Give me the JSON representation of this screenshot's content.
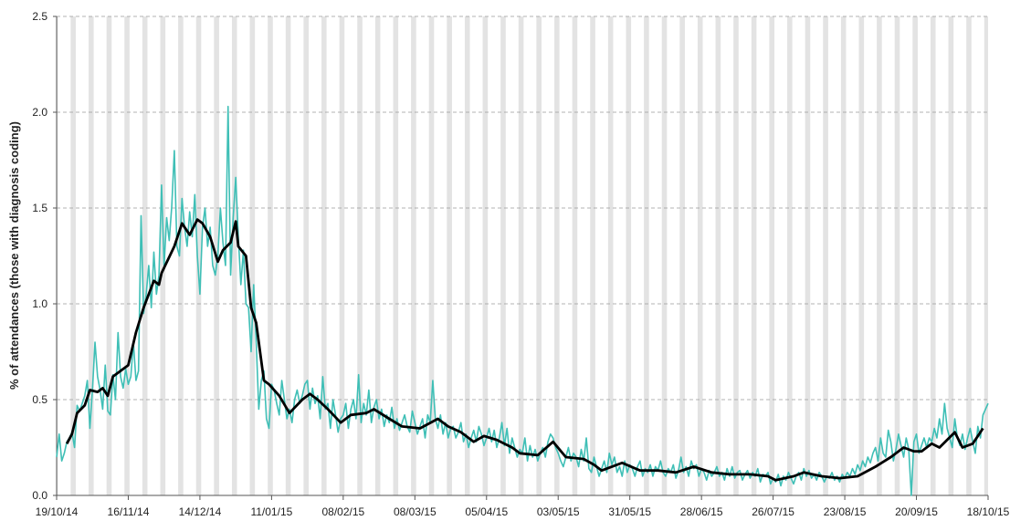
{
  "chart_data": {
    "type": "line",
    "y_label": "% of attendances (those with diagnosis coding)",
    "xlim": [
      0,
      364
    ],
    "xticks": [
      {
        "value": 0,
        "label": "19/10/14"
      },
      {
        "value": 28,
        "label": "16/11/14"
      },
      {
        "value": 56,
        "label": "14/12/14"
      },
      {
        "value": 84,
        "label": "11/01/15"
      },
      {
        "value": 112,
        "label": "08/02/15"
      },
      {
        "value": 140,
        "label": "08/03/15"
      },
      {
        "value": 168,
        "label": "05/04/15"
      },
      {
        "value": 196,
        "label": "03/05/15"
      },
      {
        "value": 224,
        "label": "31/05/15"
      },
      {
        "value": 252,
        "label": "28/06/15"
      },
      {
        "value": 280,
        "label": "26/07/15"
      },
      {
        "value": 308,
        "label": "23/08/15"
      },
      {
        "value": 336,
        "label": "20/09/15"
      },
      {
        "value": 364,
        "label": "18/10/15"
      }
    ],
    "ylim": [
      0,
      2.5
    ],
    "yticks": [
      {
        "value": 0,
        "label": "0.0"
      },
      0.5,
      {
        "value": 1,
        "label": "1.0"
      },
      1.5,
      {
        "value": 2,
        "label": "2.0"
      },
      2.5
    ],
    "grid": true,
    "x": [
      0,
      1,
      2,
      3,
      4,
      5,
      6,
      7,
      8,
      9,
      10,
      11,
      12,
      13,
      14,
      15,
      16,
      17,
      18,
      19,
      20,
      21,
      22,
      23,
      24,
      25,
      26,
      27,
      28,
      29,
      30,
      31,
      32,
      33,
      34,
      35,
      36,
      37,
      38,
      39,
      40,
      41,
      42,
      43,
      44,
      45,
      46,
      47,
      48,
      49,
      50,
      51,
      52,
      53,
      54,
      55,
      56,
      57,
      58,
      59,
      60,
      61,
      62,
      63,
      64,
      65,
      66,
      67,
      68,
      69,
      70,
      71,
      72,
      73,
      74,
      75,
      76,
      77,
      78,
      79,
      80,
      81,
      82,
      83,
      84,
      85,
      86,
      87,
      88,
      89,
      90,
      91,
      92,
      93,
      94,
      95,
      96,
      97,
      98,
      99,
      100,
      101,
      102,
      103,
      104,
      105,
      106,
      107,
      108,
      109,
      110,
      111,
      112,
      113,
      114,
      115,
      116,
      117,
      118,
      119,
      120,
      121,
      122,
      123,
      124,
      125,
      126,
      127,
      128,
      129,
      130,
      131,
      132,
      133,
      134,
      135,
      136,
      137,
      138,
      139,
      140,
      141,
      142,
      143,
      144,
      145,
      146,
      147,
      148,
      149,
      150,
      151,
      152,
      153,
      154,
      155,
      156,
      157,
      158,
      159,
      160,
      161,
      162,
      163,
      164,
      165,
      166,
      167,
      168,
      169,
      170,
      171,
      172,
      173,
      174,
      175,
      176,
      177,
      178,
      179,
      180,
      181,
      182,
      183,
      184,
      185,
      186,
      187,
      188,
      189,
      190,
      191,
      192,
      193,
      194,
      195,
      196,
      197,
      198,
      199,
      200,
      201,
      202,
      203,
      204,
      205,
      206,
      207,
      208,
      209,
      210,
      211,
      212,
      213,
      214,
      215,
      216,
      217,
      218,
      219,
      220,
      221,
      222,
      223,
      224,
      225,
      226,
      227,
      228,
      229,
      230,
      231,
      232,
      233,
      234,
      235,
      236,
      237,
      238,
      239,
      240,
      241,
      242,
      243,
      244,
      245,
      246,
      247,
      248,
      249,
      250,
      251,
      252,
      253,
      254,
      255,
      256,
      257,
      258,
      259,
      260,
      261,
      262,
      263,
      264,
      265,
      266,
      267,
      268,
      269,
      270,
      271,
      272,
      273,
      274,
      275,
      276,
      277,
      278,
      279,
      280,
      281,
      282,
      283,
      284,
      285,
      286,
      287,
      288,
      289,
      290,
      291,
      292,
      293,
      294,
      295,
      296,
      297,
      298,
      299,
      300,
      301,
      302,
      303,
      304,
      305,
      306,
      307,
      308,
      309,
      310,
      311,
      312,
      313,
      314,
      315,
      316,
      317,
      318,
      319,
      320,
      321,
      322,
      323,
      324,
      325,
      326,
      327,
      328,
      329,
      330,
      331,
      332,
      333,
      334,
      335,
      336,
      337,
      338,
      339,
      340,
      341,
      342,
      343,
      344,
      345,
      346,
      347,
      348,
      349,
      350,
      351,
      352,
      353,
      354,
      355,
      356,
      357,
      358,
      359,
      360,
      361,
      362,
      363,
      364
    ],
    "series": [
      {
        "color": "#3fbfb6",
        "width": 1.6,
        "values": [
          0.2,
          0.32,
          0.18,
          0.22,
          0.28,
          0.3,
          0.33,
          0.25,
          0.47,
          0.44,
          0.48,
          0.52,
          0.6,
          0.35,
          0.55,
          0.8,
          0.62,
          0.55,
          0.45,
          0.68,
          0.44,
          0.42,
          0.63,
          0.5,
          0.85,
          0.62,
          0.56,
          0.66,
          0.58,
          0.62,
          0.8,
          0.6,
          0.65,
          1.46,
          0.95,
          1.05,
          1.2,
          0.98,
          1.27,
          1.05,
          1.15,
          1.62,
          1.2,
          1.45,
          1.33,
          1.51,
          1.8,
          1.3,
          1.25,
          1.55,
          1.4,
          1.3,
          1.48,
          1.35,
          1.57,
          1.25,
          1.05,
          1.4,
          1.5,
          1.3,
          1.4,
          1.2,
          1.15,
          1.25,
          1.5,
          1.32,
          1.2,
          2.03,
          1.15,
          1.45,
          1.66,
          1.35,
          1.1,
          1.28,
          1.0,
          0.98,
          0.75,
          1.1,
          0.8,
          0.45,
          0.6,
          0.65,
          0.4,
          0.35,
          0.58,
          0.55,
          0.48,
          0.42,
          0.6,
          0.5,
          0.4,
          0.45,
          0.38,
          0.5,
          0.55,
          0.48,
          0.52,
          0.58,
          0.6,
          0.45,
          0.56,
          0.48,
          0.52,
          0.4,
          0.62,
          0.45,
          0.48,
          0.35,
          0.5,
          0.42,
          0.33,
          0.4,
          0.42,
          0.48,
          0.35,
          0.45,
          0.5,
          0.4,
          0.63,
          0.38,
          0.48,
          0.42,
          0.55,
          0.38,
          0.46,
          0.5,
          0.4,
          0.45,
          0.36,
          0.42,
          0.38,
          0.46,
          0.35,
          0.4,
          0.34,
          0.38,
          0.42,
          0.36,
          0.33,
          0.44,
          0.38,
          0.32,
          0.36,
          0.4,
          0.3,
          0.42,
          0.38,
          0.6,
          0.4,
          0.35,
          0.42,
          0.32,
          0.38,
          0.3,
          0.35,
          0.36,
          0.3,
          0.33,
          0.38,
          0.28,
          0.32,
          0.25,
          0.3,
          0.34,
          0.28,
          0.36,
          0.32,
          0.26,
          0.3,
          0.35,
          0.28,
          0.34,
          0.25,
          0.3,
          0.38,
          0.26,
          0.35,
          0.22,
          0.3,
          0.25,
          0.2,
          0.24,
          0.22,
          0.3,
          0.18,
          0.26,
          0.2,
          0.24,
          0.18,
          0.22,
          0.25,
          0.2,
          0.28,
          0.32,
          0.3,
          0.25,
          0.22,
          0.18,
          0.15,
          0.2,
          0.25,
          0.18,
          0.22,
          0.2,
          0.15,
          0.24,
          0.18,
          0.3,
          0.14,
          0.12,
          0.2,
          0.15,
          0.1,
          0.14,
          0.18,
          0.12,
          0.22,
          0.16,
          0.2,
          0.12,
          0.15,
          0.1,
          0.18,
          0.12,
          0.16,
          0.14,
          0.1,
          0.15,
          0.18,
          0.1,
          0.14,
          0.12,
          0.16,
          0.1,
          0.15,
          0.13,
          0.18,
          0.12,
          0.1,
          0.14,
          0.12,
          0.16,
          0.09,
          0.13,
          0.2,
          0.12,
          0.15,
          0.1,
          0.18,
          0.14,
          0.16,
          0.1,
          0.14,
          0.12,
          0.08,
          0.13,
          0.1,
          0.12,
          0.15,
          0.1,
          0.12,
          0.08,
          0.14,
          0.1,
          0.15,
          0.09,
          0.12,
          0.13,
          0.08,
          0.11,
          0.13,
          0.09,
          0.12,
          0.1,
          0.14,
          0.07,
          0.11,
          0.1,
          0.12,
          0.06,
          0.09,
          0.07,
          0.11,
          0.05,
          0.1,
          0.08,
          0.12,
          0.09,
          0.06,
          0.1,
          0.12,
          0.08,
          0.14,
          0.1,
          0.13,
          0.09,
          0.11,
          0.08,
          0.12,
          0.1,
          0.07,
          0.1,
          0.09,
          0.12,
          0.08,
          0.1,
          0.07,
          0.11,
          0.09,
          0.12,
          0.1,
          0.14,
          0.11,
          0.16,
          0.13,
          0.18,
          0.15,
          0.2,
          0.17,
          0.22,
          0.25,
          0.18,
          0.3,
          0.22,
          0.2,
          0.34,
          0.28,
          0.18,
          0.24,
          0.32,
          0.26,
          0.2,
          0.3,
          0.24,
          0.0,
          0.28,
          0.32,
          0.22,
          0.26,
          0.3,
          0.25,
          0.3,
          0.28,
          0.35,
          0.3,
          0.4,
          0.32,
          0.48,
          0.35,
          0.3,
          0.25,
          0.4,
          0.3,
          0.26,
          0.32,
          0.24,
          0.3,
          0.35,
          0.28,
          0.22,
          0.36,
          0.3,
          0.42,
          0.45,
          0.48
        ]
      },
      {
        "color": "#000000",
        "width": 2.8,
        "x": [
          4,
          6,
          8,
          11,
          13,
          16,
          18,
          20,
          22,
          28,
          31,
          34,
          38,
          40,
          41,
          46,
          49,
          52,
          55,
          57,
          60,
          63,
          65,
          68,
          70,
          71,
          74,
          76,
          78,
          81,
          83,
          87,
          91,
          96,
          99,
          102,
          106,
          111,
          115,
          121,
          124,
          130,
          135,
          142,
          149,
          153,
          158,
          163,
          167,
          172,
          178,
          181,
          188,
          194,
          199,
          206,
          210,
          213,
          221,
          228,
          235,
          242,
          249,
          256,
          263,
          271,
          278,
          281,
          288,
          292,
          299,
          306,
          313,
          320,
          326,
          331,
          335,
          338,
          342,
          345,
          351,
          354,
          358,
          362
        ],
        "values": [
          0.27,
          0.32,
          0.43,
          0.47,
          0.55,
          0.54,
          0.56,
          0.52,
          0.62,
          0.68,
          0.85,
          0.98,
          1.12,
          1.1,
          1.16,
          1.3,
          1.42,
          1.36,
          1.44,
          1.42,
          1.35,
          1.22,
          1.28,
          1.32,
          1.43,
          1.3,
          1.25,
          0.98,
          0.9,
          0.6,
          0.58,
          0.52,
          0.43,
          0.5,
          0.53,
          0.5,
          0.45,
          0.38,
          0.42,
          0.43,
          0.45,
          0.4,
          0.36,
          0.35,
          0.4,
          0.36,
          0.33,
          0.28,
          0.31,
          0.29,
          0.25,
          0.22,
          0.21,
          0.28,
          0.2,
          0.19,
          0.16,
          0.13,
          0.17,
          0.13,
          0.13,
          0.12,
          0.15,
          0.12,
          0.11,
          0.11,
          0.1,
          0.08,
          0.1,
          0.12,
          0.1,
          0.09,
          0.1,
          0.15,
          0.2,
          0.25,
          0.23,
          0.23,
          0.27,
          0.25,
          0.33,
          0.25,
          0.27,
          0.35
        ]
      }
    ]
  }
}
